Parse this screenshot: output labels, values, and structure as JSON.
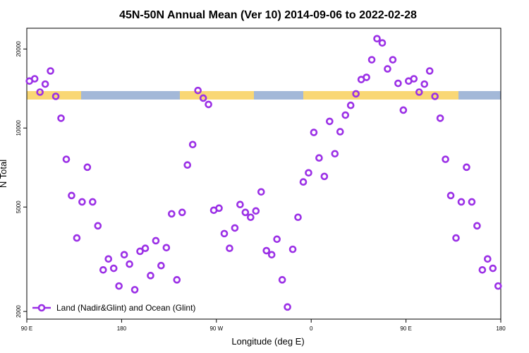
{
  "chart_data": {
    "type": "scatter",
    "title": "45N-50N Annual Mean (Ver 10)   2014-09-06 to 2022-02-28",
    "x_label": "Longitude (deg E)",
    "y_label": "N Total",
    "log_y": true,
    "legend": "lower left",
    "xlim": [
      90,
      540
    ],
    "ylim": [
      1870,
      24000
    ],
    "xticks": [
      {
        "value": 90,
        "label": "90 E"
      },
      180,
      {
        "value": 270,
        "label": "90 W"
      },
      {
        "value": 360,
        "label": "0"
      },
      {
        "value": 450,
        "label": "90 E"
      },
      {
        "value": 540,
        "label": "180"
      }
    ],
    "yticks": [
      2000,
      5000,
      10000,
      20000
    ],
    "series": [
      {
        "name": "Land (Nadir&Glint) and Ocean (Glint)",
        "color": "#9b30e6",
        "x": [
          92.5,
          97.5,
          102.5,
          107.5,
          112.5,
          117.5,
          122.5,
          127.5,
          132.5,
          137.5,
          142.5,
          147.5,
          152.5,
          157.5,
          162.5,
          167.5,
          172.5,
          177.5,
          182.5,
          187.5,
          192.5,
          197.5,
          202.5,
          207.5,
          212.5,
          217.5,
          222.5,
          227.5,
          232.5,
          237.5,
          242.5,
          247.5,
          252.5,
          257.5,
          262.5,
          267.5,
          272.5,
          277.5,
          282.5,
          287.5,
          292.5,
          297.5,
          302.5,
          307.5,
          312.5,
          317.5,
          322.5,
          327.5,
          332.5,
          337.5,
          342.5,
          347.5,
          352.5,
          357.5,
          362.5,
          367.5,
          372.5,
          377.5,
          382.5,
          387.5,
          392.5,
          397.5,
          402.5,
          407.5,
          412.5,
          417.5,
          422.5,
          427.5,
          432.5,
          437.5,
          442.5,
          447.5,
          452.5,
          457.5,
          462.5,
          467.5,
          472.5,
          477.5,
          482.5,
          487.5,
          492.5,
          497.5,
          502.5,
          507.5,
          512.5,
          517.5,
          522.5,
          527.5,
          532.5,
          537.5
        ],
        "values": [
          15100,
          15400,
          13700,
          14700,
          16500,
          13200,
          10900,
          7600,
          5530,
          3810,
          5230,
          7090,
          5230,
          4240,
          2880,
          3170,
          2920,
          2500,
          3290,
          3030,
          2420,
          3390,
          3480,
          2740,
          3720,
          2990,
          3500,
          4710,
          2640,
          4770,
          7230,
          8650,
          13900,
          13000,
          12300,
          4860,
          4950,
          3960,
          3480,
          4160,
          5110,
          4770,
          4570,
          4830,
          5710,
          3410,
          3290,
          3770,
          2640,
          2080,
          3450,
          4570,
          6230,
          6750,
          9620,
          7690,
          6540,
          10600,
          7980,
          9680,
          11200,
          12200,
          13500,
          15300,
          15600,
          18200,
          21900,
          21100,
          16800,
          18200,
          14800,
          11700,
          15100,
          15400,
          13700,
          14700,
          16500,
          13200,
          10900,
          7600,
          5530,
          3810,
          5230,
          7090,
          5230,
          4240,
          2880,
          3170,
          2920,
          2500
        ]
      }
    ]
  }
}
